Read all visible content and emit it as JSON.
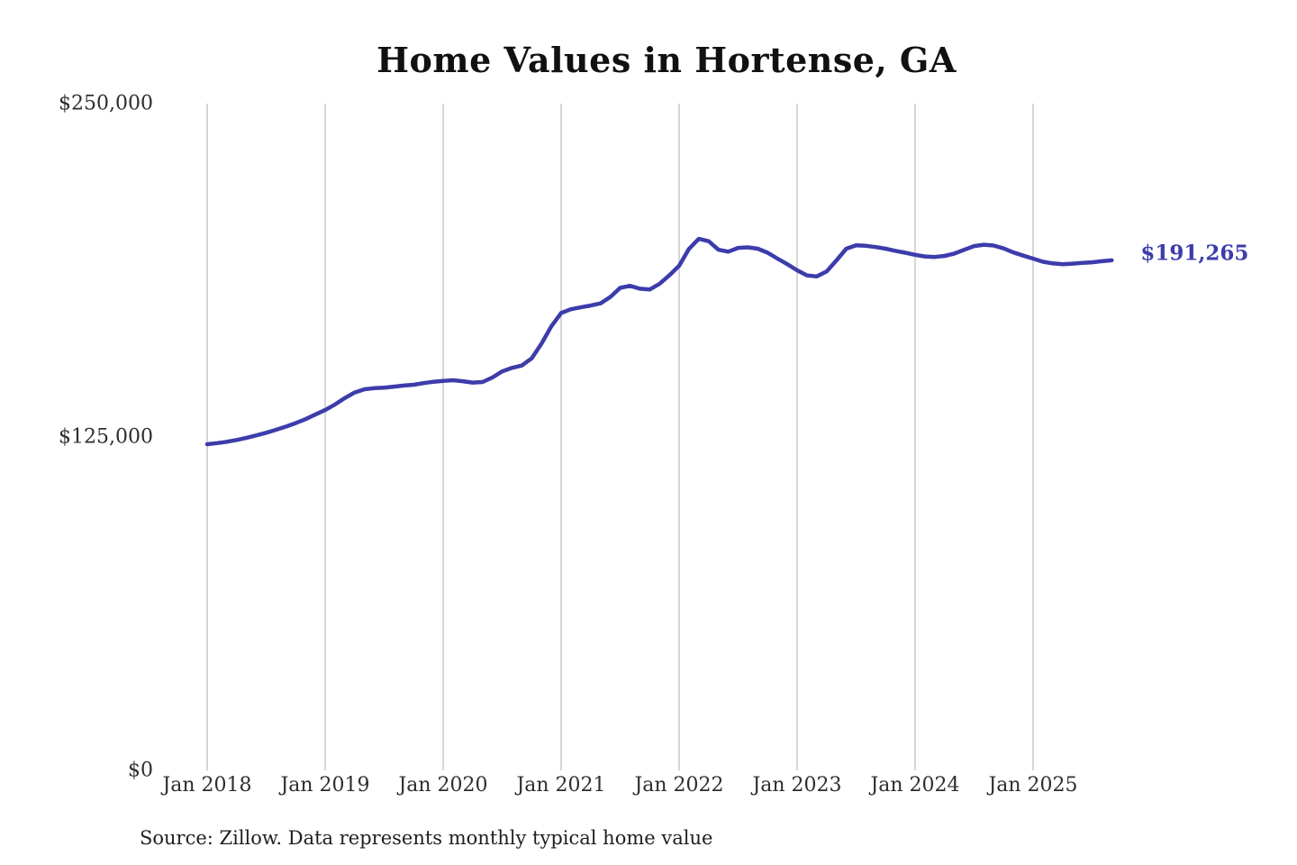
{
  "page": {
    "source_note": "Source: Zillow. Data represents monthly typical home value"
  },
  "chart_data": {
    "type": "line",
    "title": "Home Values in Hortense, GA",
    "series_name": "Monthly typical home value",
    "frequency": "monthly",
    "x_range": "Jan 2018 to Sep 2025",
    "x_tick_labels": [
      "Jan 2018",
      "Jan 2019",
      "Jan 2020",
      "Jan 2021",
      "Jan 2022",
      "Jan 2023",
      "Jan 2024",
      "Jan 2025"
    ],
    "y_ticks": [
      0,
      125000,
      250000
    ],
    "y_tick_labels": [
      "$0",
      "$125,000",
      "$250,000"
    ],
    "ylim": [
      0,
      250000
    ],
    "grid": "vertical-only",
    "legend": "none",
    "line_color": "#3c3cab",
    "gridline_color": "#c9c9c9",
    "end_label": "$191,265",
    "end_value": 191265,
    "values": [
      122300,
      122700,
      123200,
      123900,
      124700,
      125600,
      126600,
      127700,
      128900,
      130200,
      131700,
      133400,
      135100,
      137200,
      139600,
      141700,
      142900,
      143300,
      143500,
      143900,
      144300,
      144600,
      145200,
      145700,
      146000,
      146300,
      145900,
      145400,
      145600,
      147300,
      149600,
      150900,
      151800,
      154500,
      160000,
      166500,
      171500,
      172900,
      173600,
      174300,
      175100,
      177500,
      180900,
      181700,
      180600,
      180300,
      182400,
      185600,
      189200,
      195500,
      199300,
      198400,
      195200,
      194500,
      195900,
      196100,
      195600,
      194100,
      191900,
      189800,
      187500,
      185600,
      185200,
      187100,
      191200,
      195600,
      196900,
      196700,
      196200,
      195600,
      194800,
      194100,
      193300,
      192700,
      192500,
      192900,
      193800,
      195200,
      196600,
      197100,
      196800,
      195700,
      194200,
      193000,
      191900,
      190700,
      190100,
      189800,
      190000,
      190300,
      190500,
      190900,
      191265
    ]
  }
}
